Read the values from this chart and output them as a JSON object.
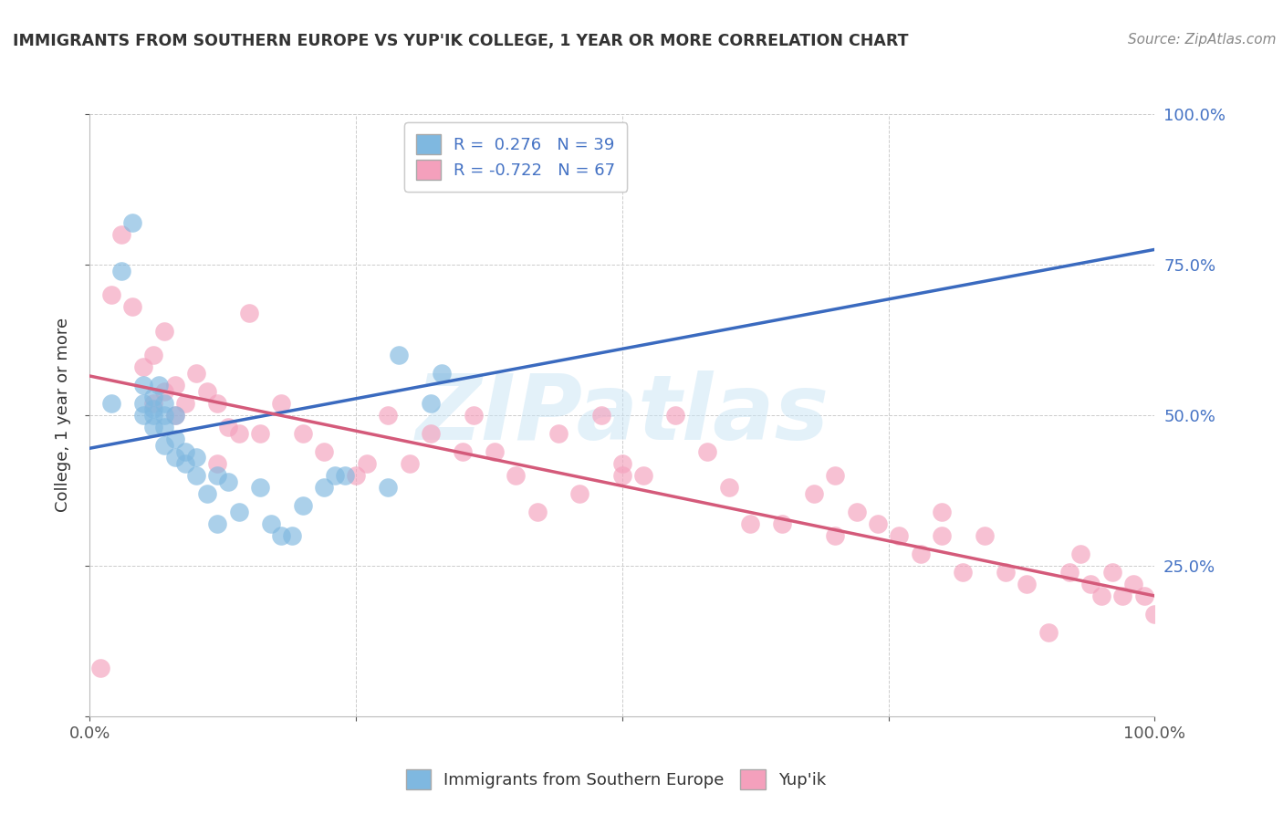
{
  "title": "IMMIGRANTS FROM SOUTHERN EUROPE VS YUP'IK COLLEGE, 1 YEAR OR MORE CORRELATION CHART",
  "source": "Source: ZipAtlas.com",
  "ylabel": "College, 1 year or more",
  "watermark": "ZIPatlas",
  "legend_labels": [
    "R =  0.276   N = 39",
    "R = -0.722   N = 67"
  ],
  "bottom_legend": [
    "Immigrants from Southern Europe",
    "Yup'ik"
  ],
  "blue_color": "#7fb8e0",
  "pink_color": "#f4a0bc",
  "blue_line_color": "#3a6abf",
  "pink_line_color": "#d45a7a",
  "xlim": [
    0.0,
    1.0
  ],
  "ylim": [
    0.0,
    1.0
  ],
  "x_ticks": [
    0.0,
    0.25,
    0.5,
    0.75,
    1.0
  ],
  "x_tick_labels": [
    "0.0%",
    "",
    "",
    "",
    "100.0%"
  ],
  "y_ticks": [
    0.0,
    0.25,
    0.5,
    0.75,
    1.0
  ],
  "y_tick_labels_left": [
    "",
    "",
    "",
    "",
    ""
  ],
  "y_tick_labels_right": [
    "",
    "25.0%",
    "50.0%",
    "75.0%",
    "100.0%"
  ],
  "blue_line_y0": 0.445,
  "blue_line_y1": 0.775,
  "pink_line_y0": 0.565,
  "pink_line_y1": 0.2,
  "blue_scatter_x": [
    0.02,
    0.03,
    0.04,
    0.05,
    0.05,
    0.05,
    0.06,
    0.06,
    0.06,
    0.06,
    0.065,
    0.07,
    0.07,
    0.07,
    0.07,
    0.08,
    0.08,
    0.08,
    0.09,
    0.09,
    0.1,
    0.1,
    0.11,
    0.12,
    0.12,
    0.13,
    0.14,
    0.16,
    0.17,
    0.18,
    0.2,
    0.22,
    0.23,
    0.24,
    0.28,
    0.29,
    0.32,
    0.33,
    0.19
  ],
  "blue_scatter_y": [
    0.52,
    0.74,
    0.82,
    0.55,
    0.52,
    0.5,
    0.53,
    0.51,
    0.5,
    0.48,
    0.55,
    0.5,
    0.52,
    0.48,
    0.45,
    0.5,
    0.43,
    0.46,
    0.44,
    0.42,
    0.43,
    0.4,
    0.37,
    0.4,
    0.32,
    0.39,
    0.34,
    0.38,
    0.32,
    0.3,
    0.35,
    0.38,
    0.4,
    0.4,
    0.38,
    0.6,
    0.52,
    0.57,
    0.3
  ],
  "pink_scatter_x": [
    0.01,
    0.02,
    0.03,
    0.04,
    0.05,
    0.06,
    0.06,
    0.07,
    0.07,
    0.08,
    0.08,
    0.09,
    0.1,
    0.11,
    0.12,
    0.12,
    0.13,
    0.14,
    0.15,
    0.16,
    0.18,
    0.2,
    0.22,
    0.25,
    0.26,
    0.28,
    0.3,
    0.32,
    0.35,
    0.36,
    0.38,
    0.4,
    0.42,
    0.44,
    0.46,
    0.48,
    0.5,
    0.52,
    0.55,
    0.58,
    0.6,
    0.62,
    0.65,
    0.68,
    0.7,
    0.72,
    0.74,
    0.76,
    0.78,
    0.8,
    0.82,
    0.84,
    0.86,
    0.88,
    0.9,
    0.92,
    0.93,
    0.94,
    0.95,
    0.96,
    0.97,
    0.98,
    0.99,
    1.0,
    0.5,
    0.7,
    0.8
  ],
  "pink_scatter_y": [
    0.08,
    0.7,
    0.8,
    0.68,
    0.58,
    0.6,
    0.52,
    0.64,
    0.54,
    0.55,
    0.5,
    0.52,
    0.57,
    0.54,
    0.42,
    0.52,
    0.48,
    0.47,
    0.67,
    0.47,
    0.52,
    0.47,
    0.44,
    0.4,
    0.42,
    0.5,
    0.42,
    0.47,
    0.44,
    0.5,
    0.44,
    0.4,
    0.34,
    0.47,
    0.37,
    0.5,
    0.42,
    0.4,
    0.5,
    0.44,
    0.38,
    0.32,
    0.32,
    0.37,
    0.3,
    0.34,
    0.32,
    0.3,
    0.27,
    0.3,
    0.24,
    0.3,
    0.24,
    0.22,
    0.14,
    0.24,
    0.27,
    0.22,
    0.2,
    0.24,
    0.2,
    0.22,
    0.2,
    0.17,
    0.4,
    0.4,
    0.34
  ],
  "background_color": "#ffffff",
  "grid_color": "#cccccc"
}
